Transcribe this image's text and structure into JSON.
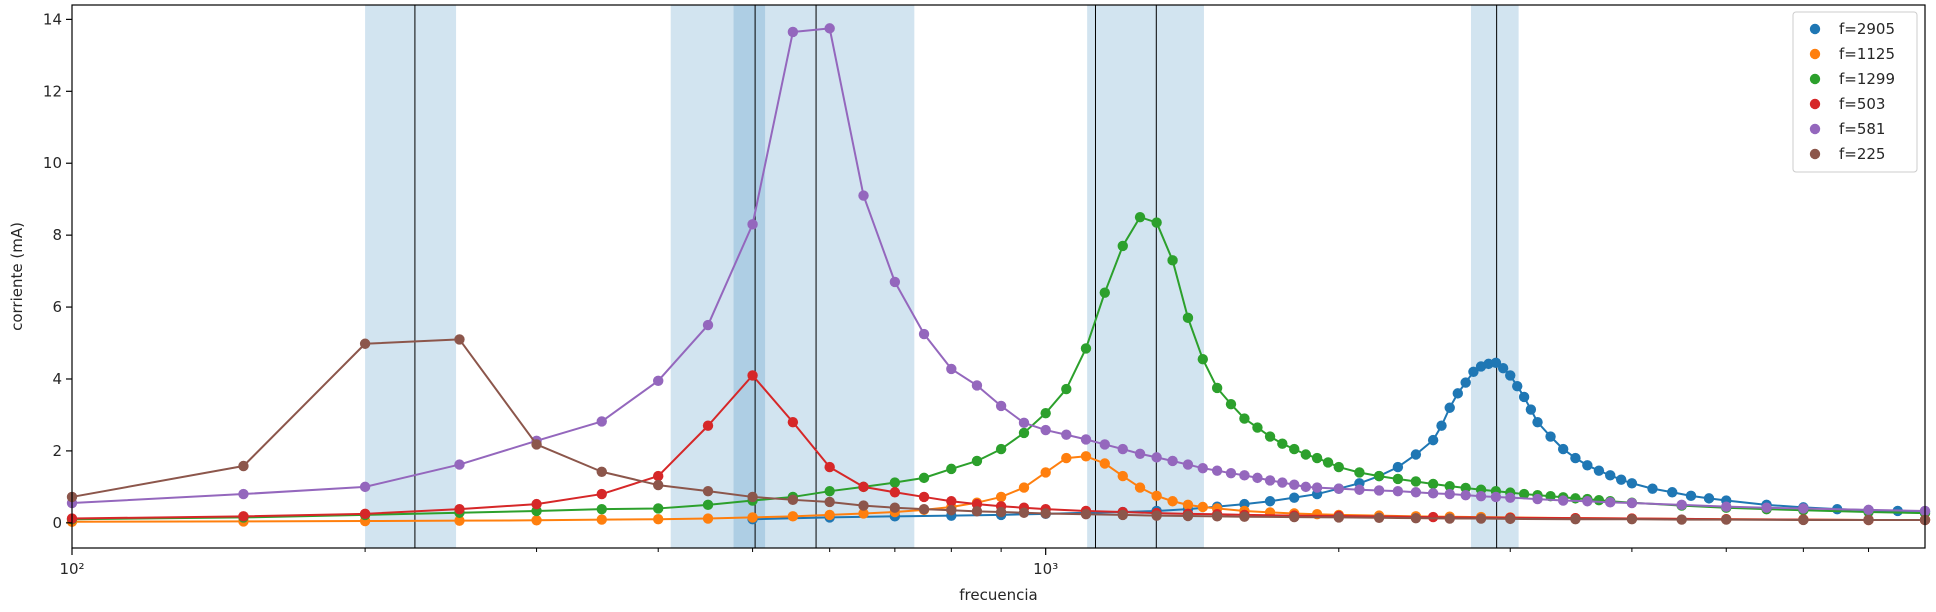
{
  "chart_data": {
    "type": "line",
    "title": "",
    "xlabel": "frecuencia",
    "ylabel": "corriente (mA)",
    "xscale": "log",
    "xlim": [
      100,
      8000
    ],
    "ylim": [
      -0.7,
      14.4
    ],
    "y_ticks": [
      0,
      2,
      4,
      6,
      8,
      10,
      12,
      14
    ],
    "y_tick_labels": [
      "0",
      "2",
      "4",
      "6",
      "8",
      "10",
      "12",
      "14"
    ],
    "x_ticks": [
      100,
      1000
    ],
    "x_tick_labels": [
      "10²",
      "10³"
    ],
    "legend": "top-right",
    "grid": false,
    "bands": [
      {
        "from": 200,
        "to": 248
      },
      {
        "from": 412,
        "to": 515
      },
      {
        "from": 478,
        "to": 733
      },
      {
        "from": 1103,
        "to": 1454
      },
      {
        "from": 2734,
        "to": 3060
      }
    ],
    "band_color": "#1f77b4",
    "vlines": [
      225,
      503,
      581,
      1125,
      1299,
      2905
    ],
    "series": [
      {
        "name": "f=2905",
        "color": "#1f77b4",
        "x": [
          500,
          600,
          700,
          800,
          900,
          1000,
          1100,
          1200,
          1300,
          1400,
          1500,
          1600,
          1700,
          1800,
          1900,
          2000,
          2100,
          2200,
          2300,
          2400,
          2500,
          2550,
          2600,
          2650,
          2700,
          2750,
          2800,
          2850,
          2900,
          2950,
          3000,
          3050,
          3100,
          3150,
          3200,
          3300,
          3400,
          3500,
          3600,
          3700,
          3800,
          3900,
          4000,
          4200,
          4400,
          4600,
          4800,
          5000,
          5500,
          6000,
          6500,
          7000,
          7500,
          8000
        ],
        "values": [
          0.1,
          0.15,
          0.18,
          0.2,
          0.22,
          0.25,
          0.28,
          0.3,
          0.33,
          0.38,
          0.45,
          0.52,
          0.6,
          0.7,
          0.8,
          0.95,
          1.1,
          1.3,
          1.55,
          1.9,
          2.3,
          2.7,
          3.2,
          3.6,
          3.9,
          4.2,
          4.35,
          4.42,
          4.45,
          4.3,
          4.1,
          3.8,
          3.5,
          3.15,
          2.8,
          2.4,
          2.05,
          1.8,
          1.6,
          1.45,
          1.32,
          1.2,
          1.1,
          0.95,
          0.85,
          0.75,
          0.68,
          0.62,
          0.5,
          0.43,
          0.38,
          0.35,
          0.33,
          0.31
        ]
      },
      {
        "name": "f=1125",
        "color": "#ff7f0e",
        "x": [
          100,
          150,
          200,
          250,
          300,
          350,
          400,
          450,
          500,
          550,
          600,
          650,
          700,
          750,
          800,
          850,
          900,
          950,
          1000,
          1050,
          1100,
          1150,
          1200,
          1250,
          1300,
          1350,
          1400,
          1450,
          1500,
          1600,
          1700,
          1800,
          1900,
          2000,
          2200,
          2400,
          2600,
          2800,
          3000,
          3500,
          4000,
          5000,
          6000,
          7000,
          8000
        ],
        "values": [
          0.03,
          0.04,
          0.05,
          0.06,
          0.07,
          0.09,
          0.1,
          0.12,
          0.15,
          0.18,
          0.22,
          0.26,
          0.3,
          0.36,
          0.44,
          0.56,
          0.72,
          0.98,
          1.4,
          1.8,
          1.85,
          1.65,
          1.3,
          0.98,
          0.75,
          0.6,
          0.5,
          0.44,
          0.4,
          0.33,
          0.29,
          0.26,
          0.24,
          0.22,
          0.2,
          0.18,
          0.17,
          0.16,
          0.15,
          0.13,
          0.12,
          0.1,
          0.09,
          0.08,
          0.08
        ]
      },
      {
        "name": "f=1299",
        "color": "#2ca02c",
        "x": [
          100,
          150,
          200,
          250,
          300,
          350,
          400,
          450,
          500,
          550,
          600,
          650,
          700,
          750,
          800,
          850,
          900,
          950,
          1000,
          1050,
          1100,
          1150,
          1200,
          1250,
          1300,
          1350,
          1400,
          1450,
          1500,
          1550,
          1600,
          1650,
          1700,
          1750,
          1800,
          1850,
          1900,
          1950,
          2000,
          2100,
          2200,
          2300,
          2400,
          2500,
          2600,
          2700,
          2800,
          2900,
          3000,
          3100,
          3200,
          3300,
          3400,
          3500,
          3600,
          3700,
          3800,
          4000,
          4500,
          5000,
          5500,
          6000,
          7000,
          8000
        ],
        "values": [
          0.1,
          0.15,
          0.22,
          0.28,
          0.33,
          0.38,
          0.4,
          0.5,
          0.62,
          0.72,
          0.88,
          1.0,
          1.12,
          1.25,
          1.5,
          1.72,
          2.05,
          2.5,
          3.05,
          3.72,
          4.85,
          6.4,
          7.7,
          8.5,
          8.35,
          7.3,
          5.7,
          4.55,
          3.75,
          3.3,
          2.9,
          2.65,
          2.4,
          2.2,
          2.05,
          1.9,
          1.8,
          1.68,
          1.55,
          1.4,
          1.3,
          1.22,
          1.15,
          1.08,
          1.02,
          0.97,
          0.92,
          0.88,
          0.84,
          0.8,
          0.77,
          0.74,
          0.71,
          0.68,
          0.66,
          0.63,
          0.6,
          0.56,
          0.48,
          0.42,
          0.38,
          0.35,
          0.3,
          0.27
        ]
      },
      {
        "name": "f=503",
        "color": "#d62728",
        "x": [
          100,
          150,
          200,
          250,
          300,
          350,
          400,
          450,
          500,
          550,
          600,
          650,
          700,
          750,
          800,
          850,
          900,
          950,
          1000,
          1100,
          1200,
          1300,
          1400,
          1500,
          1600,
          1800,
          2000,
          2500,
          3000,
          3500,
          4000,
          5000,
          6000,
          7000,
          8000
        ],
        "values": [
          0.12,
          0.18,
          0.25,
          0.38,
          0.52,
          0.8,
          1.3,
          2.7,
          4.1,
          2.8,
          1.55,
          1.0,
          0.85,
          0.72,
          0.6,
          0.52,
          0.46,
          0.42,
          0.38,
          0.33,
          0.3,
          0.27,
          0.25,
          0.24,
          0.22,
          0.2,
          0.19,
          0.16,
          0.14,
          0.13,
          0.12,
          0.1,
          0.09,
          0.08,
          0.08
        ]
      },
      {
        "name": "f=581",
        "color": "#9467bd",
        "x": [
          100,
          150,
          200,
          250,
          300,
          350,
          400,
          450,
          500,
          550,
          600,
          650,
          700,
          750,
          800,
          850,
          900,
          950,
          1000,
          1050,
          1100,
          1150,
          1200,
          1250,
          1300,
          1350,
          1400,
          1450,
          1500,
          1550,
          1600,
          1650,
          1700,
          1750,
          1800,
          1850,
          1900,
          2000,
          2100,
          2200,
          2300,
          2400,
          2500,
          2600,
          2700,
          2800,
          2900,
          3000,
          3200,
          3400,
          3600,
          3800,
          4000,
          4500,
          5000,
          5500,
          6000,
          7000,
          8000
        ],
        "values": [
          0.55,
          0.8,
          1.0,
          1.62,
          2.28,
          2.82,
          3.95,
          5.5,
          8.3,
          13.65,
          13.75,
          9.1,
          6.7,
          5.25,
          4.28,
          3.82,
          3.25,
          2.78,
          2.58,
          2.45,
          2.32,
          2.18,
          2.05,
          1.92,
          1.82,
          1.72,
          1.62,
          1.52,
          1.45,
          1.38,
          1.32,
          1.25,
          1.18,
          1.12,
          1.06,
          1.0,
          0.98,
          0.95,
          0.92,
          0.9,
          0.88,
          0.85,
          0.82,
          0.8,
          0.77,
          0.74,
          0.72,
          0.7,
          0.66,
          0.62,
          0.6,
          0.57,
          0.55,
          0.5,
          0.45,
          0.42,
          0.4,
          0.36,
          0.33
        ]
      },
      {
        "name": "f=225",
        "color": "#8c564b",
        "x": [
          100,
          150,
          200,
          250,
          300,
          350,
          400,
          450,
          500,
          550,
          600,
          650,
          700,
          750,
          800,
          850,
          900,
          950,
          1000,
          1100,
          1200,
          1300,
          1400,
          1500,
          1600,
          1800,
          2000,
          2200,
          2400,
          2600,
          2800,
          3000,
          3500,
          4000,
          4500,
          5000,
          6000,
          7000,
          8000
        ],
        "values": [
          0.72,
          1.58,
          4.98,
          5.1,
          2.18,
          1.42,
          1.05,
          0.88,
          0.72,
          0.64,
          0.58,
          0.48,
          0.42,
          0.38,
          0.35,
          0.32,
          0.3,
          0.28,
          0.26,
          0.24,
          0.22,
          0.2,
          0.19,
          0.18,
          0.17,
          0.16,
          0.15,
          0.14,
          0.13,
          0.12,
          0.12,
          0.11,
          0.1,
          0.1,
          0.09,
          0.09,
          0.08,
          0.08,
          0.08
        ]
      }
    ]
  }
}
